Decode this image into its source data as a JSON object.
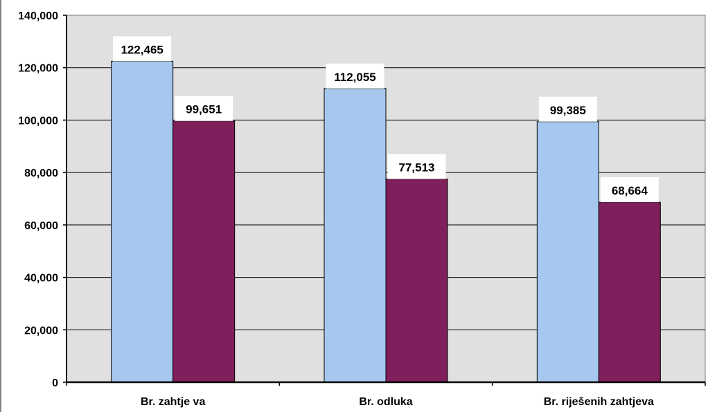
{
  "chart_data": {
    "type": "bar",
    "categories": [
      "Br. zahtje va",
      "Br. odluka",
      "Br. riješenih zahtjeva"
    ],
    "series": [
      {
        "values": [
          122465,
          112055,
          99385
        ],
        "color": "#a6c8ee"
      },
      {
        "values": [
          99651,
          77513,
          68664
        ],
        "color": "#7f1f5b"
      }
    ],
    "data_labels": [
      [
        "122,465",
        "112,055",
        "99,385"
      ],
      [
        "99,651",
        "77,513",
        "68,664"
      ]
    ],
    "y_ticks": [
      "0",
      "20,000",
      "40,000",
      "60,000",
      "80,000",
      "100,000",
      "120,000",
      "140,000"
    ],
    "ylim": [
      0,
      140000
    ],
    "y_step": 20000,
    "grid": true,
    "legend": "none",
    "plot_background": "#e0e0e0"
  }
}
